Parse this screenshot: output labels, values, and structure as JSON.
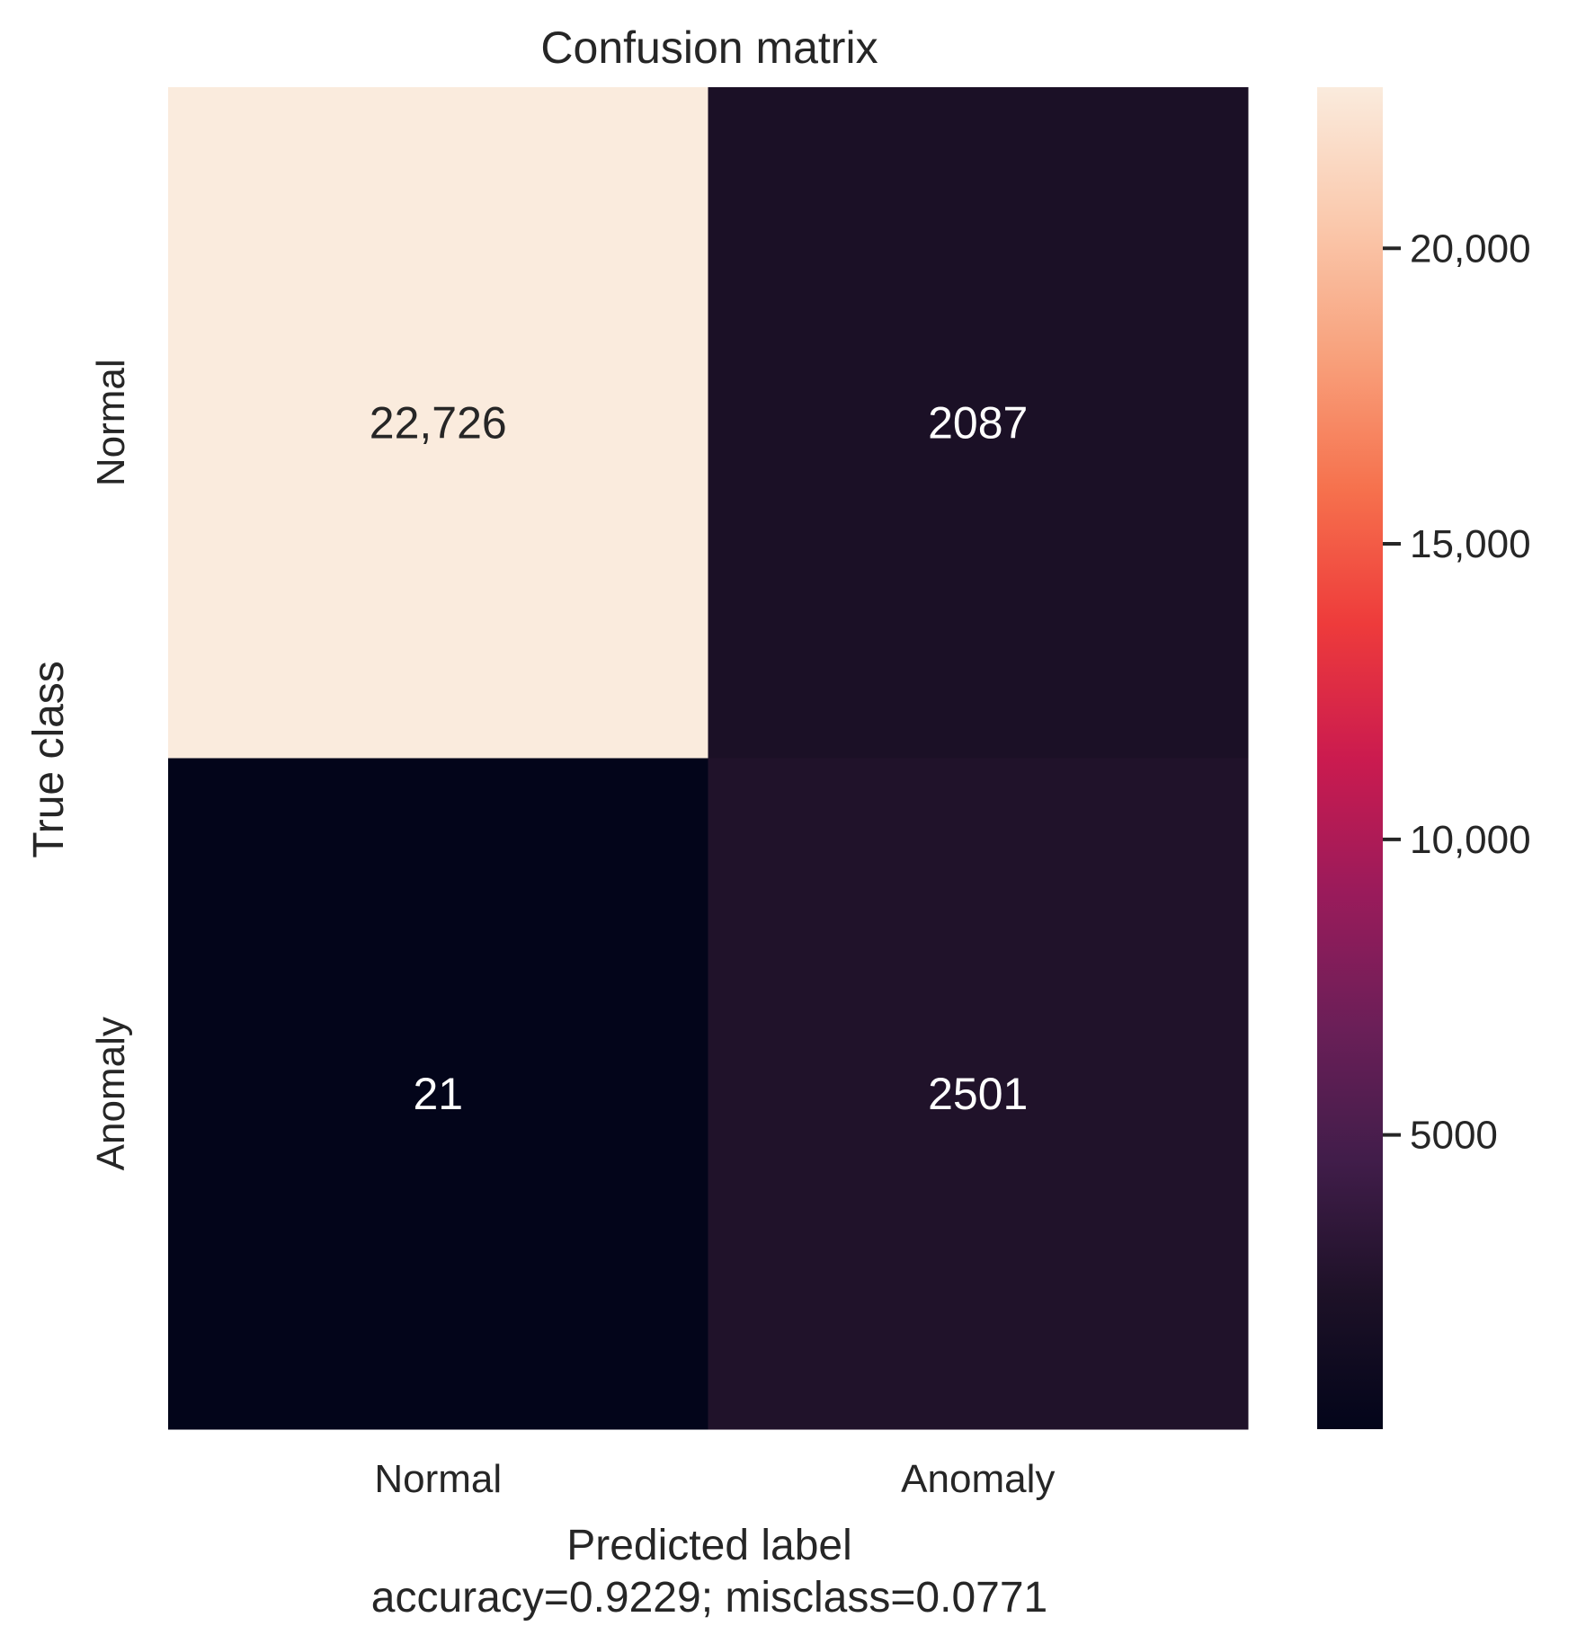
{
  "chart_data": {
    "type": "heatmap",
    "title": "Confusion matrix",
    "xlabel": "Predicted label",
    "ylabel": "True class",
    "caption": "accuracy=0.9229; misclass=0.0771",
    "x_categories": [
      "Normal",
      "Anomaly"
    ],
    "y_categories": [
      "Normal",
      "Anomaly"
    ],
    "values": [
      [
        22726,
        2087
      ],
      [
        21,
        2501
      ]
    ],
    "value_labels": [
      [
        "22,726",
        "2087"
      ],
      [
        "21",
        "2501"
      ]
    ],
    "colormap": "rocket",
    "colorbar": {
      "min": 21,
      "max": 22726,
      "ticks": [
        5000,
        10000,
        15000,
        20000
      ],
      "tick_labels": [
        "5000",
        "10,000",
        "15,000",
        "20,000"
      ]
    },
    "grid": false
  }
}
